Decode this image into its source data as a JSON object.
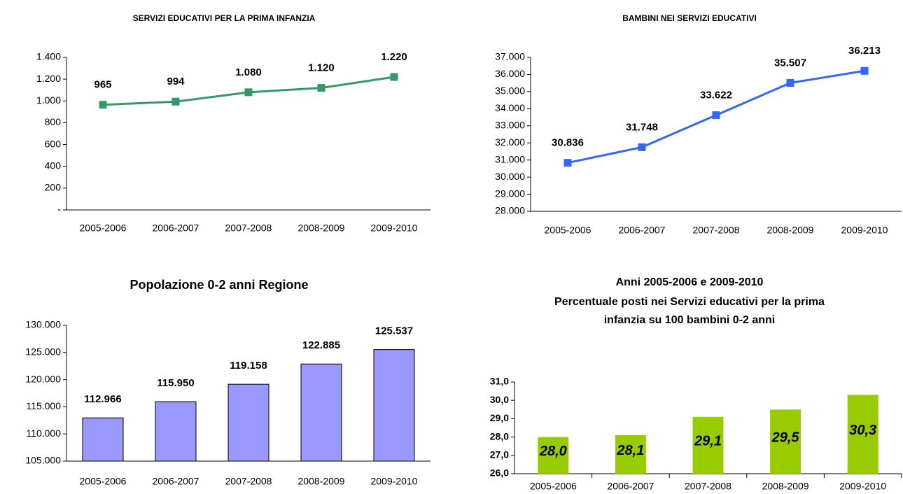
{
  "chart_data": [
    {
      "type": "line",
      "title": "SERVIZI EDUCATIVI PER LA PRIMA INFANZIA",
      "categories": [
        "2005-2006",
        "2006-2007",
        "2007-2008",
        "2008-2009",
        "2009-2010"
      ],
      "values": [
        965,
        994,
        1080,
        1120,
        1220
      ],
      "value_labels": [
        "965",
        "994",
        "1.080",
        "1.120",
        "1.220"
      ],
      "color": "#339966",
      "ylim": [
        0,
        1400
      ],
      "yticks": [
        {
          "value": 0,
          "label": "-"
        },
        200,
        400,
        600,
        800,
        {
          "value": 1000,
          "label": "1.000"
        },
        {
          "value": 1200,
          "label": "1.200"
        },
        {
          "value": 1400,
          "label": "1.400"
        }
      ]
    },
    {
      "type": "line",
      "title": "BAMBINI NEI SERVIZI EDUCATIVI",
      "categories": [
        "2005-2006",
        "2006-2007",
        "2007-2008",
        "2008-2009",
        "2009-2010"
      ],
      "values": [
        30836,
        31748,
        33622,
        35507,
        36213
      ],
      "value_labels": [
        "30.836",
        "31.748",
        "33.622",
        "35.507",
        "36.213"
      ],
      "color": "#3366ff",
      "ylim": [
        28000,
        37000
      ],
      "yticks": [
        {
          "value": 28000,
          "label": "28.000"
        },
        {
          "value": 29000,
          "label": "29.000"
        },
        {
          "value": 30000,
          "label": "30.000"
        },
        {
          "value": 31000,
          "label": "31.000"
        },
        {
          "value": 32000,
          "label": "32.000"
        },
        {
          "value": 33000,
          "label": "33.000"
        },
        {
          "value": 34000,
          "label": "34.000"
        },
        {
          "value": 35000,
          "label": "35.000"
        },
        {
          "value": 36000,
          "label": "36.000"
        },
        {
          "value": 37000,
          "label": "37.000"
        }
      ]
    },
    {
      "type": "bar",
      "title": "Popolazione 0-2 anni Regione",
      "categories": [
        "2005-2006",
        "2006-2007",
        "2007-2008",
        "2008-2009",
        "2009-2010"
      ],
      "values": [
        112966,
        115950,
        119158,
        122885,
        125537
      ],
      "value_labels": [
        "112.966",
        "115.950",
        "119.158",
        "122.885",
        "125.537"
      ],
      "color": "#9999ff",
      "ylim": [
        105000,
        130000
      ],
      "yticks": [
        {
          "value": 105000,
          "label": "105.000"
        },
        {
          "value": 110000,
          "label": "110.000"
        },
        {
          "value": 115000,
          "label": "115.000"
        },
        {
          "value": 120000,
          "label": "120.000"
        },
        {
          "value": 125000,
          "label": "125.000"
        },
        {
          "value": 130000,
          "label": "130.000"
        }
      ]
    },
    {
      "type": "bar",
      "title": [
        "Anni 2005-2006 e 2009-2010",
        "Percentuale posti nei Servizi educativi per la prima",
        "infanzia su 100 bambini 0-2 anni"
      ],
      "categories": [
        "2005-2006",
        "2006-2007",
        "2007-2008",
        "2008-2009",
        "2009-2010"
      ],
      "values": [
        28.0,
        28.1,
        29.1,
        29.5,
        30.3
      ],
      "value_labels": [
        "28,0",
        "28,1",
        "29,1",
        "29,5",
        "30,3"
      ],
      "color": "#99cc00",
      "ylim": [
        26,
        31
      ],
      "yticks": [
        {
          "value": 26,
          "label": "26,0"
        },
        {
          "value": 27,
          "label": "27,0"
        },
        {
          "value": 28,
          "label": "28,0"
        },
        {
          "value": 29,
          "label": "29,0"
        },
        {
          "value": 30,
          "label": "30,0"
        },
        {
          "value": 31,
          "label": "31,0"
        }
      ]
    }
  ]
}
